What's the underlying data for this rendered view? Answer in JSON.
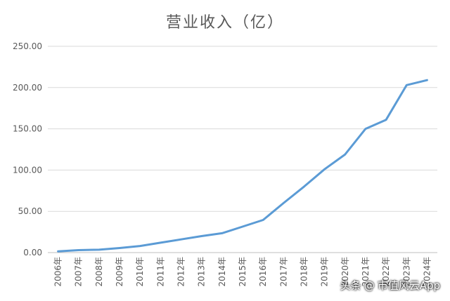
{
  "chart_data": {
    "type": "line",
    "title": "营业收入（亿）",
    "x": [
      "2006年",
      "2007年",
      "2008年",
      "2009年",
      "2010年",
      "2011年",
      "2012年",
      "2013年",
      "2014年",
      "2015年",
      "2016年",
      "2017年",
      "2018年",
      "2019年",
      "2020年",
      "2021年",
      "2022年",
      "2023年",
      "2024年"
    ],
    "series": [
      {
        "values": [
          1.5,
          3,
          3.5,
          5.5,
          8,
          12,
          16,
          20,
          23.5,
          31.5,
          39.5,
          60,
          80,
          101,
          119,
          150,
          161,
          203,
          209
        ]
      }
    ],
    "ylim": [
      0,
      250
    ],
    "yticks": [
      "0.00",
      "50.00",
      "100.00",
      "150.00",
      "200.00",
      "250.00"
    ],
    "grid": true,
    "colors": {
      "series": "#5b9bd5"
    }
  },
  "watermark": {
    "prefix": "头条",
    "at": "@",
    "name": "市值风云App"
  }
}
